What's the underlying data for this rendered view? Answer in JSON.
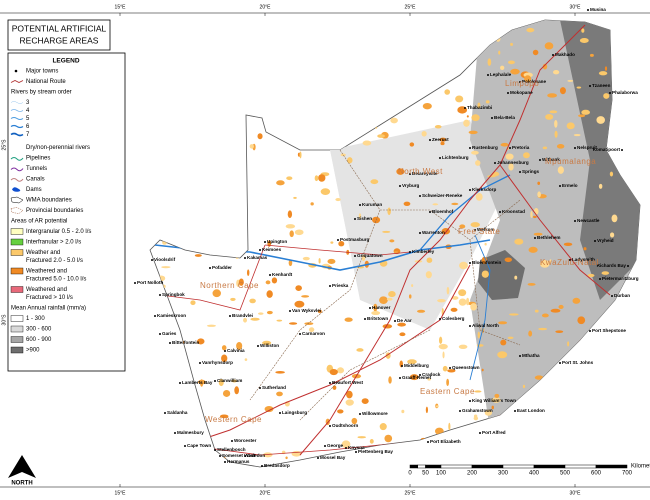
{
  "title": [
    "POTENTIAL ARTIFICIAL",
    "RECHARGE AREAS"
  ],
  "legend": {
    "heading": "LEGEND",
    "items": [
      [
        "Major towns"
      ],
      [
        "National Route"
      ],
      [
        "Rivers by stream order"
      ],
      [
        "3"
      ],
      [
        "4"
      ],
      [
        "5"
      ],
      [
        "6"
      ],
      [
        "7"
      ],
      [
        "Dry/non-perennial rivers"
      ],
      [
        "Pipelines"
      ],
      [
        "Tunnels"
      ],
      [
        "Canals"
      ],
      [
        "Dams"
      ],
      [
        "WMA boundaries"
      ],
      [
        "Provincial boundaries"
      ],
      [
        "Areas of AR potential"
      ],
      [
        "Intergranular 0.5 - 2.0 l/s"
      ],
      [
        "Interfranular > 2.0 l/s"
      ],
      [
        "Weather and",
        "Fractured 2.0 - 5.0 l/s"
      ],
      [
        "Weathered and",
        "Fractured 5.0 - 10.0 l/s"
      ],
      [
        "Weathered and",
        "Fractured > 10 l/s"
      ],
      [
        "Mean Annual rainfall (mm/a)"
      ],
      [
        "1 - 300"
      ],
      [
        "300 - 600"
      ],
      [
        "600 - 900"
      ],
      [
        ">900"
      ]
    ]
  },
  "graticule": {
    "longitudes": [
      "15°E",
      "20°E",
      "25°E",
      "30°E"
    ],
    "latitudes": [
      "25°S",
      "30°S"
    ]
  },
  "provinces": [
    "Limpopo",
    "Mpumalanga",
    "North West",
    "Free State",
    "KwaZulu-Natal",
    "Northern Cape",
    "Eastern Cape",
    "Western Cape"
  ],
  "towns": [
    "Musina",
    "Makhado",
    "Polokwane",
    "Tzaneen",
    "Phalaborwa",
    "Lephalale",
    "Mokopane",
    "Thabazimbi",
    "Bela-Bela",
    "Nelspruit",
    "Komatipoort",
    "Zeerust",
    "Rustenburg",
    "Pretoria",
    "Johannesburg",
    "Lichtenburg",
    "Springs",
    "Witbank",
    "Ermelo",
    "Vryburg",
    "Delareyville",
    "Klerksdorp",
    "Schweizer-Reneke",
    "Kuruman",
    "Sishen",
    "Postmasburg",
    "Bloemhof",
    "Kroonstad",
    "Warrenton",
    "Welkom",
    "Bethlehem",
    "Newcastle",
    "Vryheid",
    "Ladysmith",
    "Pietermaritzburg",
    "Durban",
    "Richards Bay",
    "Kimberley",
    "Bloemfontein",
    "Upington",
    "Kakamas",
    "Keimoes",
    "Pofadder",
    "Vioolsdrif",
    "Port Nolloth",
    "Springbok",
    "Kenhardt",
    "Prieska",
    "Griquatown",
    "Hanover",
    "De Aar",
    "Colesberg",
    "Aliwal North",
    "Brandvlei",
    "Van Wyksvlei",
    "Kamieskroon",
    "Garies",
    "Calvinia",
    "Williston",
    "Carnarvon",
    "Britstown",
    "Bitterfontein",
    "Vanrhynsdorp",
    "Sutherland",
    "Beaufort West",
    "Middelburg",
    "Graaff-Reinet",
    "Cradock",
    "Queenstown",
    "Lamberts Bay",
    "Clanwilliam",
    "Laingsburg",
    "Oudtshoorn",
    "Willowmore",
    "Grahamstown",
    "East London",
    "King William's Town",
    "Mthatha",
    "Port St. Johns",
    "Port Shepstone",
    "Saldanha",
    "Malmesbury",
    "Cape Town",
    "Stellenbosch",
    "Worcester",
    "Somerset West",
    "Hermanus",
    "Caledon",
    "Bredasdorp",
    "Mossel Bay",
    "George",
    "Knysna",
    "Plettenberg Bay",
    "Port Elizabeth",
    "Port Alfred"
  ],
  "scale": {
    "labels": [
      "0",
      "50",
      "100",
      "200",
      "300",
      "400",
      "500",
      "600",
      "700"
    ],
    "unit": "Kilometers"
  },
  "north": "NORTH"
}
